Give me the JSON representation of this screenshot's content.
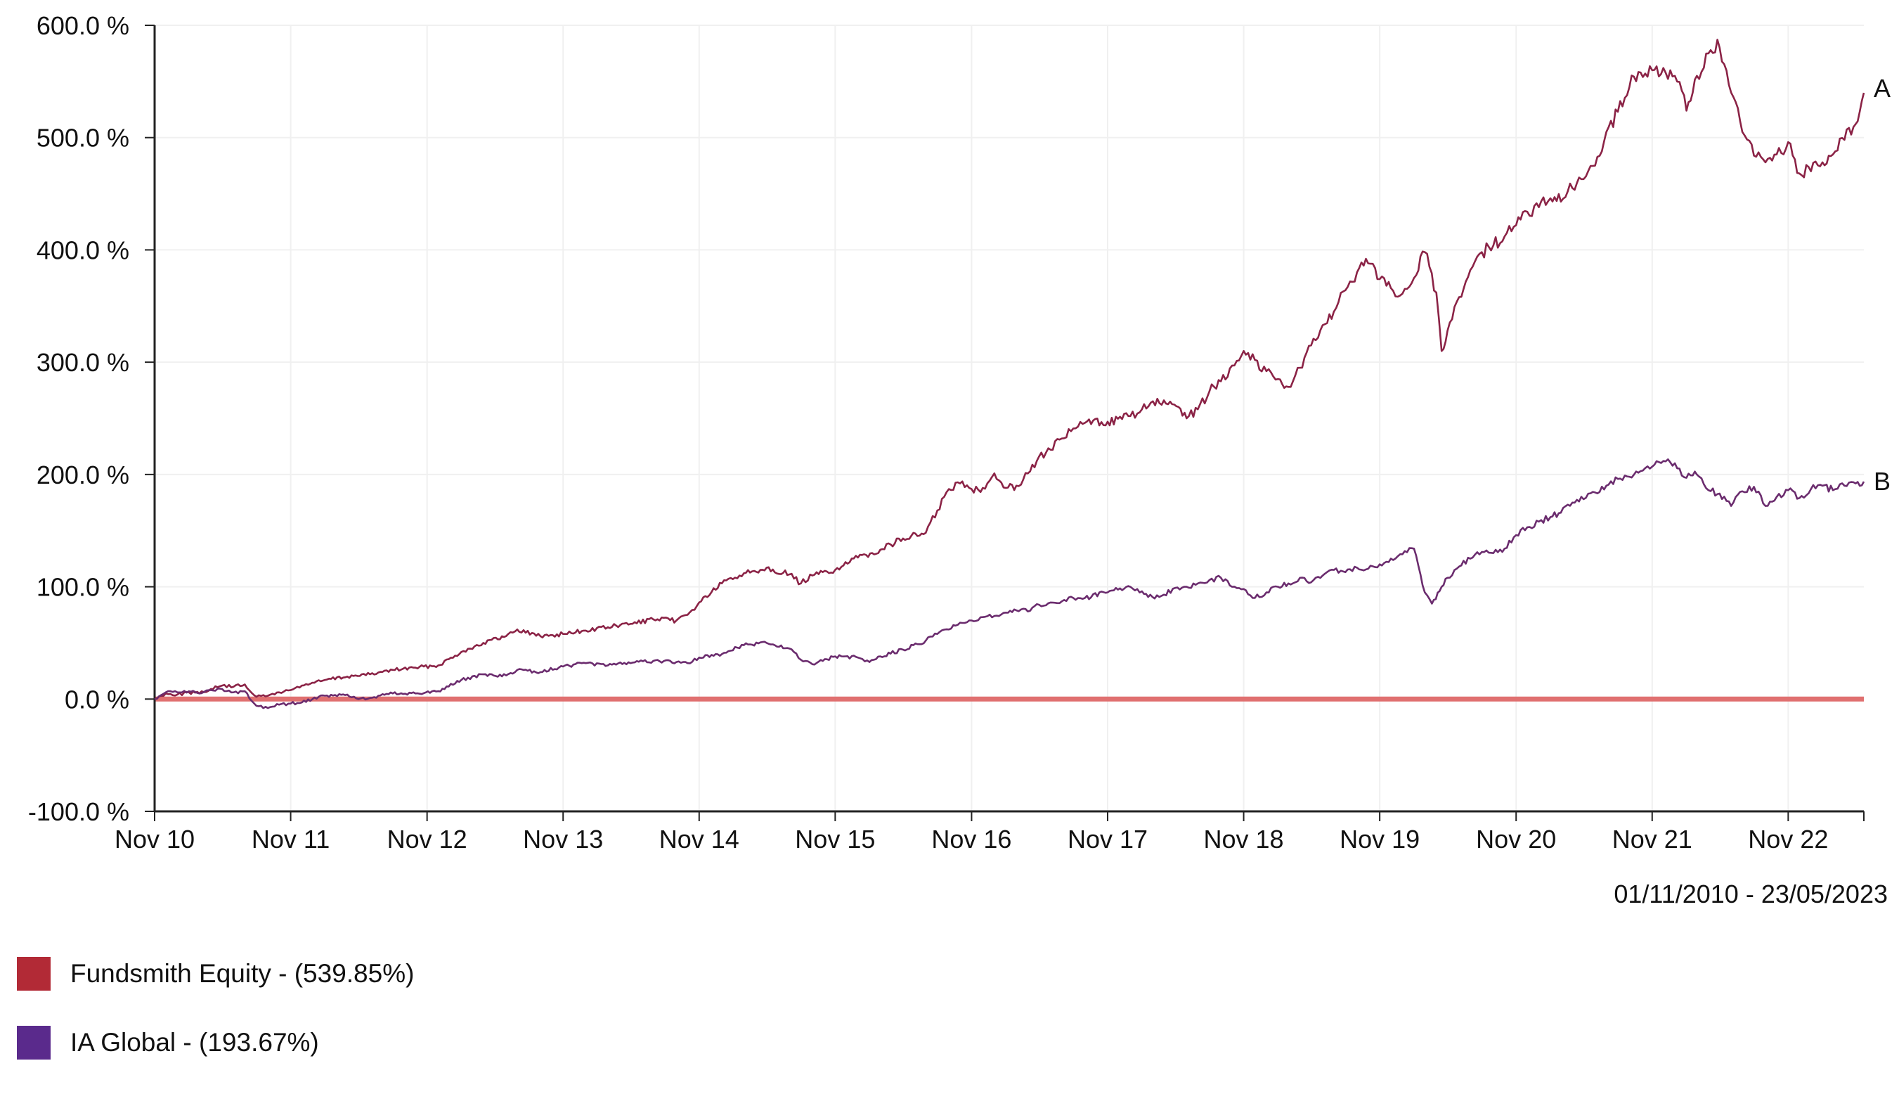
{
  "chart_data": {
    "type": "line",
    "title": "",
    "xlabel": "",
    "ylabel": "",
    "date_range": "01/11/2010 - 23/05/2023",
    "ylim": [
      -100,
      600
    ],
    "xlim": [
      "2010-11-01",
      "2023-05-23"
    ],
    "y_ticks": [
      {
        "value": 600,
        "label": "600.0 %"
      },
      {
        "value": 500,
        "label": "500.0 %"
      },
      {
        "value": 400,
        "label": "400.0 %"
      },
      {
        "value": 300,
        "label": "300.0 %"
      },
      {
        "value": 200,
        "label": "200.0 %"
      },
      {
        "value": 100,
        "label": "100.0 %"
      },
      {
        "value": 0,
        "label": "0.0 %"
      },
      {
        "value": -100,
        "label": "-100.0 %"
      }
    ],
    "x_ticks": [
      {
        "date": "2010-11-01",
        "label": "Nov 10"
      },
      {
        "date": "2011-11-01",
        "label": "Nov 11"
      },
      {
        "date": "2012-11-01",
        "label": "Nov 12"
      },
      {
        "date": "2013-11-01",
        "label": "Nov 13"
      },
      {
        "date": "2014-11-01",
        "label": "Nov 14"
      },
      {
        "date": "2015-11-01",
        "label": "Nov 15"
      },
      {
        "date": "2016-11-01",
        "label": "Nov 16"
      },
      {
        "date": "2017-11-01",
        "label": "Nov 17"
      },
      {
        "date": "2018-11-01",
        "label": "Nov 18"
      },
      {
        "date": "2019-11-01",
        "label": "Nov 19"
      },
      {
        "date": "2020-11-01",
        "label": "Nov 20"
      },
      {
        "date": "2021-11-01",
        "label": "Nov 21"
      },
      {
        "date": "2022-11-01",
        "label": "Nov 22"
      }
    ],
    "grid": true,
    "reference_line": {
      "value": 0,
      "color": "#e07070"
    },
    "legend_position": "bottom-left",
    "series": [
      {
        "name": "Fundsmith Equity - (539.85%)",
        "end_label": "A",
        "color": "#8b2346",
        "legend_color": "#b22a36",
        "points": [
          [
            "2010-11-01",
            0
          ],
          [
            "2010-12-01",
            5
          ],
          [
            "2011-01-01",
            4
          ],
          [
            "2011-02-01",
            6
          ],
          [
            "2011-03-01",
            5
          ],
          [
            "2011-04-01",
            9
          ],
          [
            "2011-05-01",
            12
          ],
          [
            "2011-06-01",
            11
          ],
          [
            "2011-07-01",
            13
          ],
          [
            "2011-08-01",
            2
          ],
          [
            "2011-09-01",
            3
          ],
          [
            "2011-10-01",
            6
          ],
          [
            "2011-11-01",
            8
          ],
          [
            "2011-12-01",
            12
          ],
          [
            "2012-02-01",
            17
          ],
          [
            "2012-04-01",
            20
          ],
          [
            "2012-06-01",
            22
          ],
          [
            "2012-08-01",
            26
          ],
          [
            "2012-10-01",
            28
          ],
          [
            "2012-12-01",
            30
          ],
          [
            "2013-02-01",
            42
          ],
          [
            "2013-04-01",
            50
          ],
          [
            "2013-06-01",
            56
          ],
          [
            "2013-07-01",
            62
          ],
          [
            "2013-09-01",
            56
          ],
          [
            "2013-11-01",
            58
          ],
          [
            "2014-01-01",
            61
          ],
          [
            "2014-03-01",
            64
          ],
          [
            "2014-05-01",
            67
          ],
          [
            "2014-07-01",
            71
          ],
          [
            "2014-09-01",
            70
          ],
          [
            "2014-10-01",
            75
          ],
          [
            "2014-11-01",
            86
          ],
          [
            "2015-01-01",
            103
          ],
          [
            "2015-03-01",
            112
          ],
          [
            "2015-05-01",
            117
          ],
          [
            "2015-07-01",
            111
          ],
          [
            "2015-08-01",
            103
          ],
          [
            "2015-09-01",
            110
          ],
          [
            "2015-11-01",
            115
          ],
          [
            "2016-01-01",
            126
          ],
          [
            "2016-03-01",
            133
          ],
          [
            "2016-05-01",
            143
          ],
          [
            "2016-07-01",
            148
          ],
          [
            "2016-08-01",
            168
          ],
          [
            "2016-09-01",
            187
          ],
          [
            "2016-10-01",
            192
          ],
          [
            "2016-11-01",
            187
          ],
          [
            "2016-12-01",
            188
          ],
          [
            "2017-01-01",
            201
          ],
          [
            "2017-02-01",
            188
          ],
          [
            "2017-03-01",
            190
          ],
          [
            "2017-04-01",
            201
          ],
          [
            "2017-05-01",
            216
          ],
          [
            "2017-06-01",
            222
          ],
          [
            "2017-07-01",
            232
          ],
          [
            "2017-08-01",
            241
          ],
          [
            "2017-09-01",
            246
          ],
          [
            "2017-11-01",
            247
          ],
          [
            "2018-01-01",
            252
          ],
          [
            "2018-02-01",
            258
          ],
          [
            "2018-04-01",
            266
          ],
          [
            "2018-06-01",
            250
          ],
          [
            "2018-07-01",
            258
          ],
          [
            "2018-08-01",
            274
          ],
          [
            "2018-09-01",
            283
          ],
          [
            "2018-10-01",
            297
          ],
          [
            "2018-11-01",
            310
          ],
          [
            "2018-12-01",
            302
          ],
          [
            "2019-01-01",
            292
          ],
          [
            "2019-02-01",
            285
          ],
          [
            "2019-03-01",
            278
          ],
          [
            "2019-04-01",
            295
          ],
          [
            "2019-05-01",
            315
          ],
          [
            "2019-06-01",
            333
          ],
          [
            "2019-07-01",
            345
          ],
          [
            "2019-08-01",
            364
          ],
          [
            "2019-09-01",
            380
          ],
          [
            "2019-10-01",
            388
          ],
          [
            "2019-11-01",
            374
          ],
          [
            "2019-12-01",
            366
          ],
          [
            "2020-01-01",
            361
          ],
          [
            "2020-02-01",
            375
          ],
          [
            "2020-03-01",
            398
          ],
          [
            "2020-04-01",
            362
          ],
          [
            "2020-04-15",
            310
          ],
          [
            "2020-05-01",
            328
          ],
          [
            "2020-06-01",
            358
          ],
          [
            "2020-07-01",
            382
          ],
          [
            "2020-08-01",
            398
          ],
          [
            "2020-09-01",
            404
          ],
          [
            "2020-10-01",
            412
          ],
          [
            "2020-11-01",
            422
          ],
          [
            "2020-12-01",
            434
          ],
          [
            "2021-01-01",
            438
          ],
          [
            "2021-02-01",
            446
          ],
          [
            "2021-03-01",
            443
          ],
          [
            "2021-04-01",
            455
          ],
          [
            "2021-05-01",
            463
          ],
          [
            "2021-06-01",
            475
          ],
          [
            "2021-07-01",
            505
          ],
          [
            "2021-08-01",
            523
          ],
          [
            "2021-09-01",
            545
          ],
          [
            "2021-10-01",
            558
          ],
          [
            "2021-11-01",
            560
          ],
          [
            "2021-12-01",
            562
          ],
          [
            "2022-01-01",
            555
          ],
          [
            "2022-02-01",
            524
          ],
          [
            "2022-03-01",
            555
          ],
          [
            "2022-04-01",
            575
          ],
          [
            "2022-05-01",
            580
          ],
          [
            "2022-06-01",
            540
          ],
          [
            "2022-07-01",
            505
          ],
          [
            "2022-08-01",
            484
          ],
          [
            "2022-09-01",
            478
          ],
          [
            "2022-10-01",
            485
          ],
          [
            "2022-11-01",
            496
          ],
          [
            "2022-12-01",
            468
          ],
          [
            "2023-01-01",
            470
          ],
          [
            "2023-02-01",
            478
          ],
          [
            "2023-03-01",
            485
          ],
          [
            "2023-04-01",
            498
          ],
          [
            "2023-05-01",
            512
          ],
          [
            "2023-05-23",
            539.85
          ]
        ]
      },
      {
        "name": "IA Global - (193.67%)",
        "end_label": "B",
        "color": "#6b2c6e",
        "legend_color": "#5a2a8c",
        "points": [
          [
            "2010-11-01",
            0
          ],
          [
            "2010-12-01",
            6
          ],
          [
            "2011-01-01",
            6
          ],
          [
            "2011-02-01",
            7
          ],
          [
            "2011-03-01",
            5
          ],
          [
            "2011-04-01",
            8
          ],
          [
            "2011-05-01",
            9
          ],
          [
            "2011-06-01",
            6
          ],
          [
            "2011-07-01",
            7
          ],
          [
            "2011-08-01",
            -6
          ],
          [
            "2011-09-01",
            -8
          ],
          [
            "2011-10-01",
            -5
          ],
          [
            "2011-11-01",
            -4
          ],
          [
            "2011-12-01",
            -3
          ],
          [
            "2012-02-01",
            3
          ],
          [
            "2012-04-01",
            4
          ],
          [
            "2012-05-01",
            0
          ],
          [
            "2012-06-01",
            1
          ],
          [
            "2012-08-01",
            5
          ],
          [
            "2012-10-01",
            5
          ],
          [
            "2012-12-01",
            7
          ],
          [
            "2013-02-01",
            17
          ],
          [
            "2013-04-01",
            22
          ],
          [
            "2013-06-01",
            21
          ],
          [
            "2013-07-01",
            26
          ],
          [
            "2013-09-01",
            24
          ],
          [
            "2013-11-01",
            29
          ],
          [
            "2014-01-01",
            32
          ],
          [
            "2014-03-01",
            30
          ],
          [
            "2014-05-01",
            32
          ],
          [
            "2014-07-01",
            34
          ],
          [
            "2014-09-01",
            33
          ],
          [
            "2014-10-01",
            32
          ],
          [
            "2014-11-01",
            37
          ],
          [
            "2015-01-01",
            40
          ],
          [
            "2015-03-01",
            48
          ],
          [
            "2015-05-01",
            50
          ],
          [
            "2015-07-01",
            45
          ],
          [
            "2015-08-01",
            35
          ],
          [
            "2015-09-01",
            31
          ],
          [
            "2015-11-01",
            38
          ],
          [
            "2016-01-01",
            37
          ],
          [
            "2016-02-01",
            33
          ],
          [
            "2016-03-01",
            38
          ],
          [
            "2016-05-01",
            44
          ],
          [
            "2016-07-01",
            52
          ],
          [
            "2016-08-01",
            58
          ],
          [
            "2016-09-01",
            62
          ],
          [
            "2016-10-01",
            68
          ],
          [
            "2016-11-01",
            70
          ],
          [
            "2016-12-01",
            73
          ],
          [
            "2017-01-01",
            74
          ],
          [
            "2017-02-01",
            77
          ],
          [
            "2017-03-01",
            79
          ],
          [
            "2017-04-01",
            78
          ],
          [
            "2017-05-01",
            84
          ],
          [
            "2017-06-01",
            86
          ],
          [
            "2017-07-01",
            87
          ],
          [
            "2017-08-01",
            90
          ],
          [
            "2017-09-01",
            90
          ],
          [
            "2017-11-01",
            95
          ],
          [
            "2018-01-01",
            100
          ],
          [
            "2018-02-01",
            96
          ],
          [
            "2018-03-01",
            91
          ],
          [
            "2018-04-01",
            93
          ],
          [
            "2018-05-01",
            99
          ],
          [
            "2018-06-01",
            100
          ],
          [
            "2018-07-01",
            103
          ],
          [
            "2018-08-01",
            106
          ],
          [
            "2018-09-01",
            108
          ],
          [
            "2018-10-01",
            100
          ],
          [
            "2018-11-01",
            98
          ],
          [
            "2018-12-01",
            90
          ],
          [
            "2019-01-01",
            95
          ],
          [
            "2019-02-01",
            100
          ],
          [
            "2019-03-01",
            103
          ],
          [
            "2019-04-01",
            108
          ],
          [
            "2019-05-01",
            104
          ],
          [
            "2019-06-01",
            110
          ],
          [
            "2019-07-01",
            115
          ],
          [
            "2019-08-01",
            113
          ],
          [
            "2019-09-01",
            117
          ],
          [
            "2019-10-01",
            116
          ],
          [
            "2019-11-01",
            120
          ],
          [
            "2019-12-01",
            125
          ],
          [
            "2020-01-01",
            129
          ],
          [
            "2020-02-01",
            134
          ],
          [
            "2020-03-01",
            95
          ],
          [
            "2020-03-20",
            85
          ],
          [
            "2020-04-15",
            100
          ],
          [
            "2020-05-01",
            108
          ],
          [
            "2020-06-01",
            118
          ],
          [
            "2020-07-01",
            125
          ],
          [
            "2020-08-01",
            131
          ],
          [
            "2020-09-01",
            130
          ],
          [
            "2020-10-01",
            134
          ],
          [
            "2020-11-01",
            146
          ],
          [
            "2020-12-01",
            153
          ],
          [
            "2021-01-01",
            158
          ],
          [
            "2021-02-01",
            162
          ],
          [
            "2021-03-01",
            166
          ],
          [
            "2021-04-01",
            175
          ],
          [
            "2021-05-01",
            178
          ],
          [
            "2021-06-01",
            184
          ],
          [
            "2021-07-01",
            190
          ],
          [
            "2021-08-01",
            196
          ],
          [
            "2021-09-01",
            198
          ],
          [
            "2021-10-01",
            203
          ],
          [
            "2021-11-01",
            207
          ],
          [
            "2021-12-01",
            212
          ],
          [
            "2022-01-01",
            210
          ],
          [
            "2022-02-01",
            197
          ],
          [
            "2022-03-01",
            200
          ],
          [
            "2022-04-01",
            186
          ],
          [
            "2022-05-01",
            183
          ],
          [
            "2022-06-01",
            172
          ],
          [
            "2022-07-01",
            185
          ],
          [
            "2022-08-01",
            189
          ],
          [
            "2022-09-01",
            172
          ],
          [
            "2022-10-01",
            180
          ],
          [
            "2022-11-01",
            186
          ],
          [
            "2022-12-01",
            179
          ],
          [
            "2023-01-01",
            187
          ],
          [
            "2023-02-01",
            190
          ],
          [
            "2023-03-01",
            186
          ],
          [
            "2023-04-01",
            190
          ],
          [
            "2023-05-01",
            192
          ],
          [
            "2023-05-23",
            193.67
          ]
        ]
      }
    ]
  }
}
